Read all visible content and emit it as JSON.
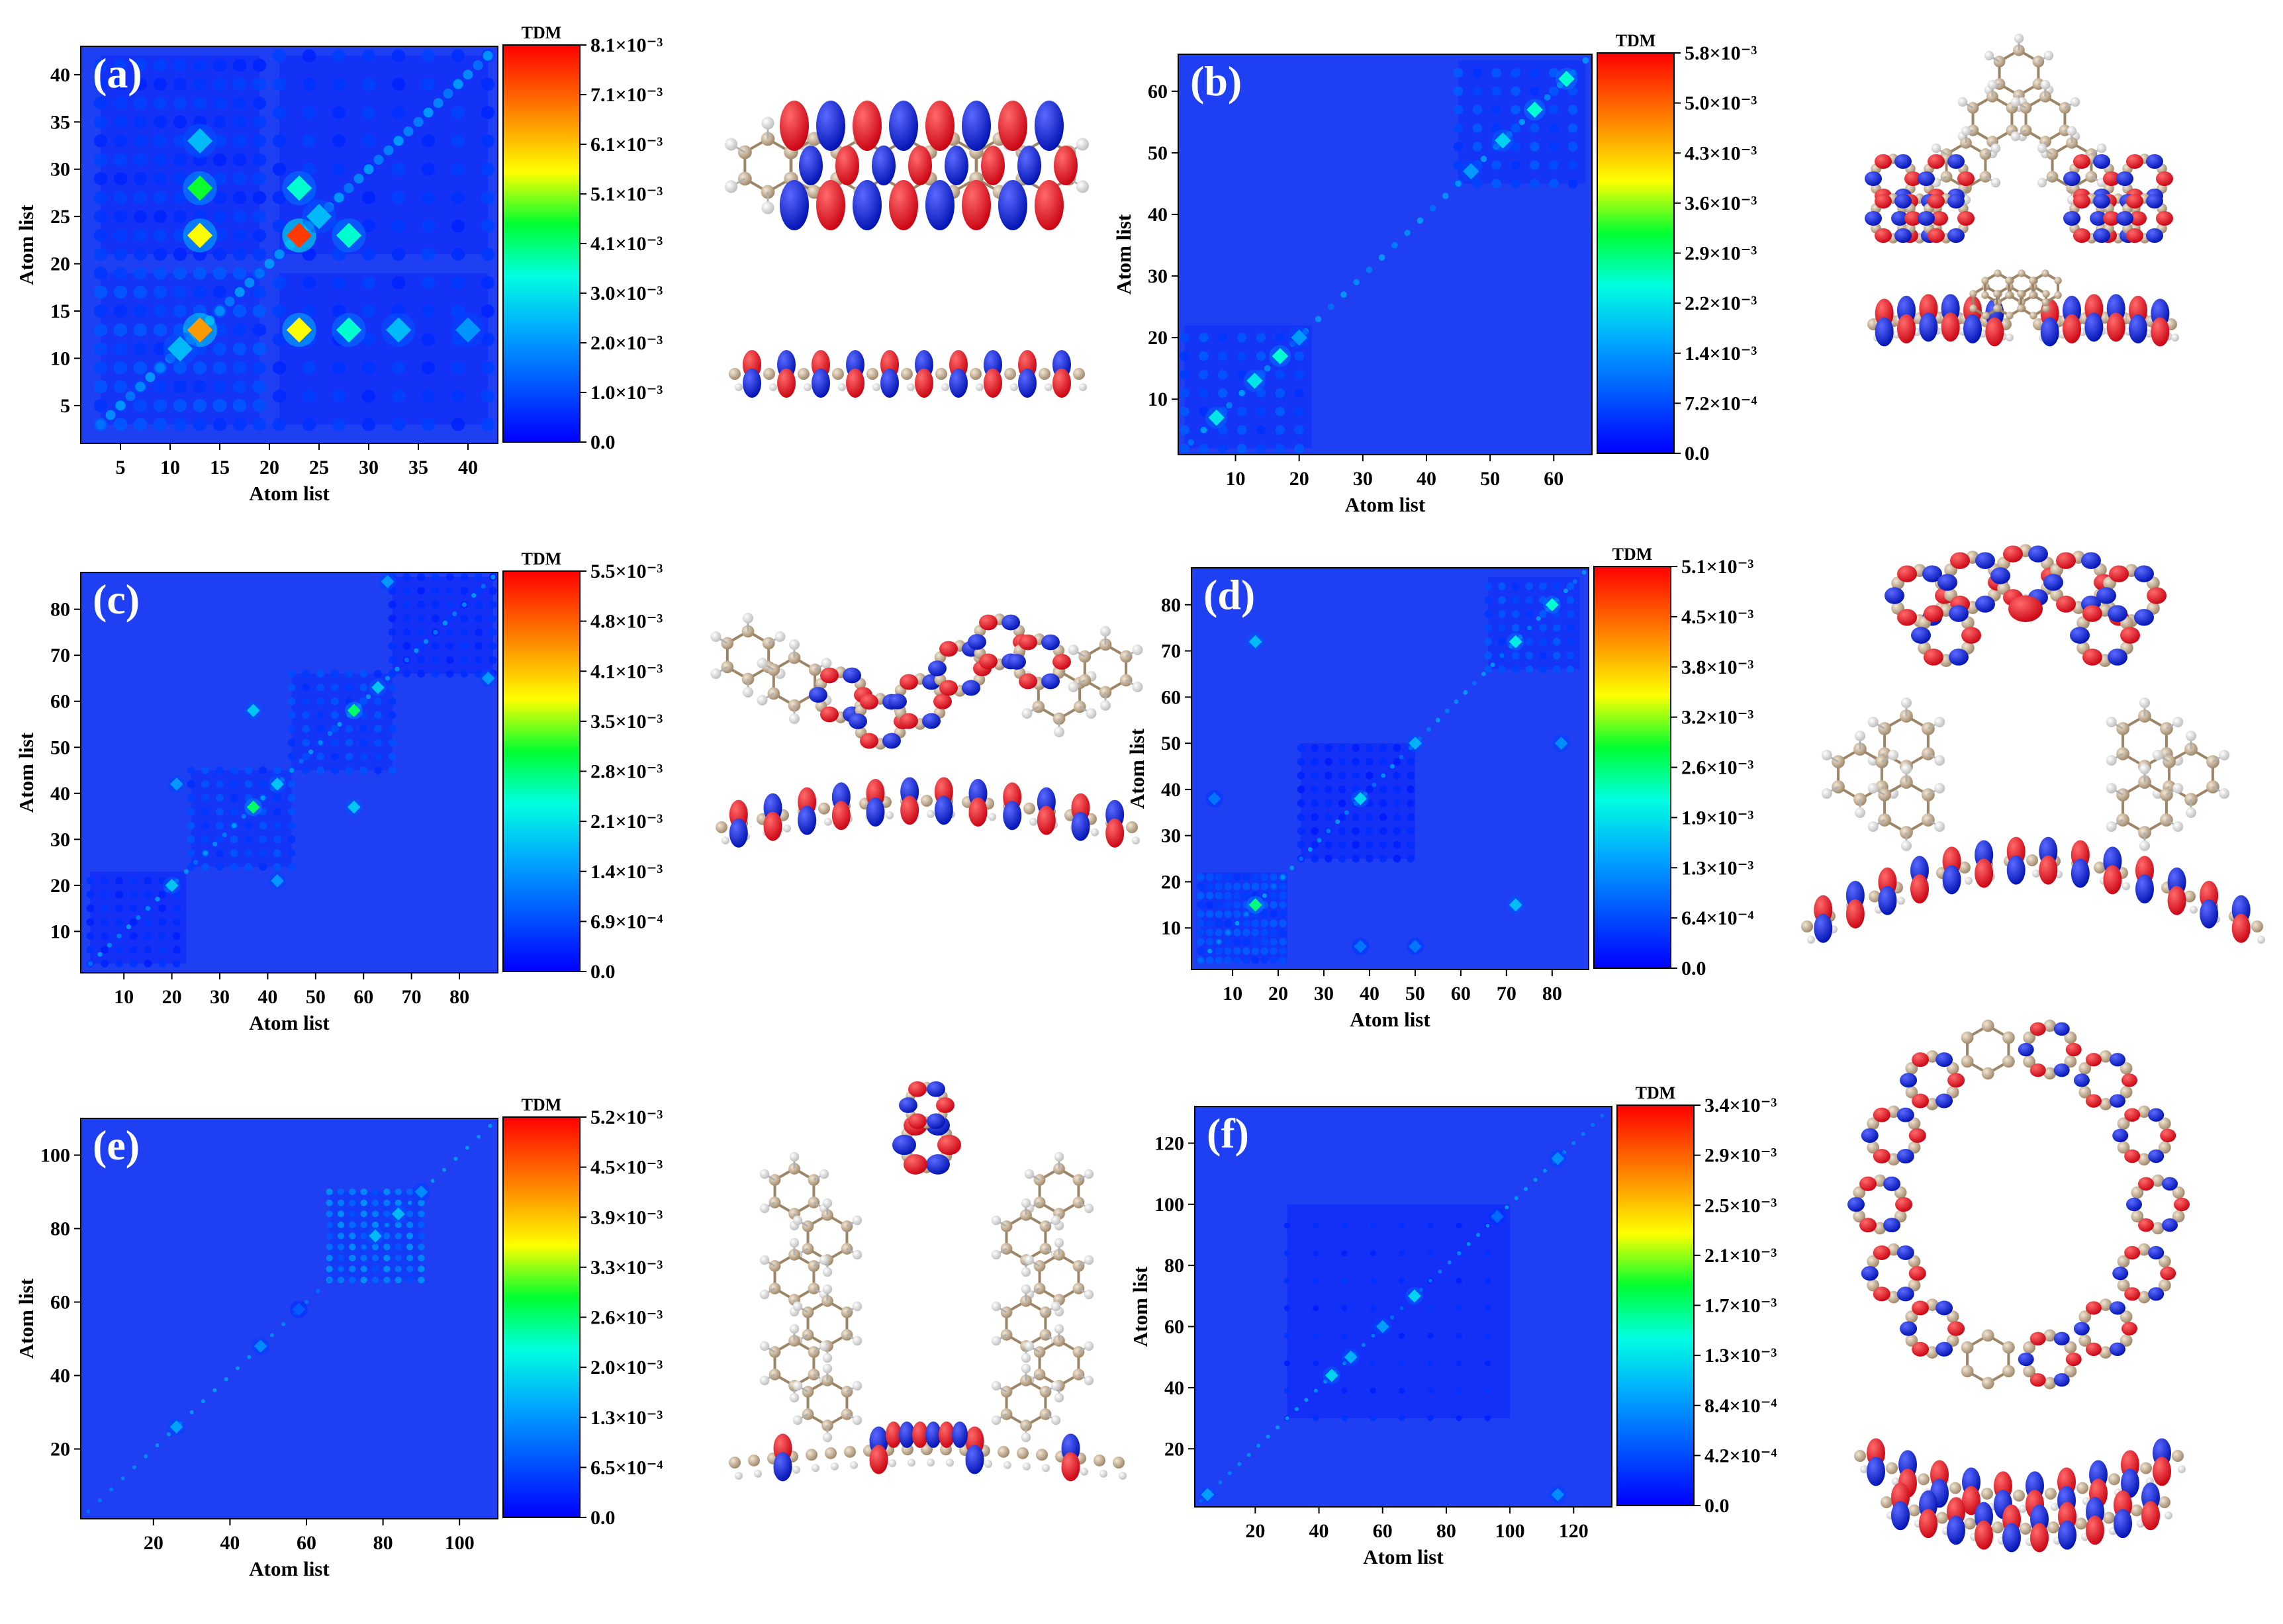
{
  "figure": {
    "colorbar_title": "TDM",
    "axis_label": "Atom list"
  },
  "colors": {
    "background": "#1f43f0",
    "scale": [
      "#0000ff",
      "#00e0ff",
      "#00ff40",
      "#ffff00",
      "#ff8c00",
      "#ff0000"
    ],
    "isosurface_positive": "#e0101a",
    "isosurface_negative": "#1020d0",
    "carbon": "#b8a488",
    "hydrogen": "#e8e8e8",
    "nitrogen": "#2030c0"
  },
  "chart_data": [
    {
      "type": "heatmap",
      "panel": "(a)",
      "title": "(a)",
      "xlabel": "Atom list",
      "ylabel": "Atom list",
      "xlim": [
        1,
        43
      ],
      "ylim": [
        1,
        43
      ],
      "xticks": [
        "5",
        "10",
        "15",
        "20",
        "25",
        "30",
        "35",
        "40"
      ],
      "yticks": [
        "5",
        "10",
        "15",
        "20",
        "25",
        "30",
        "35",
        "40"
      ],
      "colorbar": {
        "title": "TDM",
        "min": 0,
        "max": 0.0081,
        "ticks": [
          "8.1×10⁻³",
          "7.1×10⁻³",
          "6.1×10⁻³",
          "5.1×10⁻³",
          "4.1×10⁻³",
          "3.0×10⁻³",
          "2.0×10⁻³",
          "1.0×10⁻³",
          "0.0"
        ]
      },
      "hotspots": [
        [
          13,
          13,
          0.0065
        ],
        [
          23,
          23,
          0.0075
        ],
        [
          13,
          23,
          0.0055
        ],
        [
          23,
          13,
          0.0055
        ],
        [
          13,
          28,
          0.0045
        ],
        [
          28,
          13,
          0.0035
        ],
        [
          23,
          28,
          0.0035
        ],
        [
          28,
          23,
          0.0035
        ],
        [
          13,
          33,
          0.0025
        ],
        [
          33,
          13,
          0.0025
        ],
        [
          11,
          11,
          0.0025
        ],
        [
          25,
          25,
          0.0025
        ],
        [
          40,
          13,
          0.002
        ]
      ],
      "blocks": [
        [
          3,
          19,
          3,
          19,
          0.0012
        ],
        [
          21,
          42,
          21,
          42,
          0.0009
        ],
        [
          3,
          19,
          21,
          42,
          0.0009
        ],
        [
          21,
          42,
          3,
          19,
          0.0009
        ]
      ]
    },
    {
      "type": "heatmap",
      "panel": "(b)",
      "title": "(b)",
      "xlabel": "Atom list",
      "ylabel": "Atom list",
      "xlim": [
        1,
        66
      ],
      "ylim": [
        1,
        66
      ],
      "xticks": [
        "10",
        "20",
        "30",
        "40",
        "50",
        "60"
      ],
      "yticks": [
        "10",
        "20",
        "30",
        "40",
        "50",
        "60"
      ],
      "colorbar": {
        "title": "TDM",
        "min": 0,
        "max": 0.0058,
        "ticks": [
          "5.8×10⁻³",
          "5.0×10⁻³",
          "4.3×10⁻³",
          "3.6×10⁻³",
          "2.9×10⁻³",
          "2.2×10⁻³",
          "1.4×10⁻³",
          "7.2×10⁻⁴",
          "0.0"
        ]
      },
      "hotspots": [
        [
          7,
          7,
          0.0022
        ],
        [
          13,
          13,
          0.0022
        ],
        [
          17,
          17,
          0.0025
        ],
        [
          57,
          57,
          0.0025
        ],
        [
          52,
          52,
          0.002
        ],
        [
          62,
          62,
          0.0025
        ],
        [
          20,
          20,
          0.0015
        ],
        [
          47,
          47,
          0.0015
        ]
      ],
      "blocks": [
        [
          2,
          22,
          2,
          22,
          0.0009
        ],
        [
          45,
          65,
          45,
          65,
          0.0009
        ]
      ]
    },
    {
      "type": "heatmap",
      "panel": "(c)",
      "title": "(c)",
      "xlabel": "Atom list",
      "ylabel": "Atom list",
      "xlim": [
        1,
        88
      ],
      "ylim": [
        1,
        88
      ],
      "xticks": [
        "10",
        "20",
        "30",
        "40",
        "50",
        "60",
        "70",
        "80"
      ],
      "yticks": [
        "10",
        "20",
        "30",
        "40",
        "50",
        "60",
        "70",
        "80"
      ],
      "colorbar": {
        "title": "TDM",
        "min": 0,
        "max": 0.0055,
        "ticks": [
          "5.5×10⁻³",
          "4.8×10⁻³",
          "4.1×10⁻³",
          "3.5×10⁻³",
          "2.8×10⁻³",
          "2.1×10⁻³",
          "1.4×10⁻³",
          "6.9×10⁻⁴",
          "0.0"
        ]
      },
      "hotspots": [
        [
          37,
          37,
          0.0028
        ],
        [
          58,
          58,
          0.0028
        ],
        [
          20,
          20,
          0.0018
        ],
        [
          37,
          58,
          0.0018
        ],
        [
          58,
          37,
          0.0018
        ],
        [
          21,
          42,
          0.0014
        ],
        [
          42,
          21,
          0.0014
        ],
        [
          65,
          86,
          0.0014
        ],
        [
          86,
          65,
          0.0014
        ],
        [
          42,
          42,
          0.0018
        ],
        [
          63,
          63,
          0.0018
        ]
      ],
      "blocks": [
        [
          24,
          45,
          24,
          45,
          0.0008
        ],
        [
          45,
          66,
          45,
          66,
          0.0008
        ],
        [
          3,
          23,
          3,
          23,
          0.0005
        ],
        [
          66,
          87,
          66,
          87,
          0.0005
        ]
      ]
    },
    {
      "type": "heatmap",
      "panel": "(d)",
      "title": "(d)",
      "xlabel": "Atom list",
      "ylabel": "Atom list",
      "xlim": [
        1,
        88
      ],
      "ylim": [
        1,
        88
      ],
      "xticks": [
        "10",
        "20",
        "30",
        "40",
        "50",
        "60",
        "70",
        "80"
      ],
      "yticks": [
        "10",
        "20",
        "30",
        "40",
        "50",
        "60",
        "70",
        "80"
      ],
      "colorbar": {
        "title": "TDM",
        "min": 0,
        "max": 0.0051,
        "ticks": [
          "5.1×10⁻³",
          "4.5×10⁻³",
          "3.8×10⁻³",
          "3.2×10⁻³",
          "2.6×10⁻³",
          "1.9×10⁻³",
          "1.3×10⁻³",
          "6.4×10⁻⁴",
          "0.0"
        ]
      },
      "hotspots": [
        [
          15,
          15,
          0.0025
        ],
        [
          72,
          72,
          0.002
        ],
        [
          38,
          38,
          0.0018
        ],
        [
          50,
          50,
          0.0015
        ],
        [
          80,
          80,
          0.0022
        ],
        [
          15,
          72,
          0.0016
        ],
        [
          72,
          15,
          0.0016
        ],
        [
          50,
          6,
          0.001
        ],
        [
          6,
          38,
          0.001
        ],
        [
          38,
          6,
          0.001
        ],
        [
          82,
          50,
          0.0012
        ]
      ],
      "blocks": [
        [
          3,
          22,
          3,
          22,
          0.0008
        ],
        [
          66,
          86,
          66,
          86,
          0.0008
        ],
        [
          25,
          50,
          25,
          50,
          0.0004
        ]
      ]
    },
    {
      "type": "heatmap",
      "panel": "(e)",
      "title": "(e)",
      "xlabel": "Atom list",
      "ylabel": "Atom list",
      "xlim": [
        1,
        110
      ],
      "ylim": [
        1,
        110
      ],
      "xticks": [
        "20",
        "40",
        "60",
        "80",
        "100"
      ],
      "yticks": [
        "20",
        "40",
        "60",
        "80",
        "100"
      ],
      "colorbar": {
        "title": "TDM",
        "min": 0,
        "max": 0.0052,
        "ticks": [
          "5.2×10⁻³",
          "4.5×10⁻³",
          "3.9×10⁻³",
          "3.3×10⁻³",
          "2.6×10⁻³",
          "2.0×10⁻³",
          "1.3×10⁻³",
          "6.5×10⁻⁴",
          "0.0"
        ]
      },
      "hotspots": [
        [
          26,
          26,
          0.0014
        ],
        [
          48,
          48,
          0.0012
        ],
        [
          58,
          58,
          0.0008
        ],
        [
          90,
          90,
          0.0012
        ],
        [
          78,
          78,
          0.0016
        ],
        [
          84,
          84,
          0.0016
        ]
      ],
      "blocks": [
        [
          66,
          90,
          66,
          90,
          0.0013
        ]
      ]
    },
    {
      "type": "heatmap",
      "panel": "(f)",
      "title": "(f)",
      "xlabel": "Atom list",
      "ylabel": "Atom list",
      "xlim": [
        1,
        132
      ],
      "ylim": [
        1,
        132
      ],
      "xticks": [
        "20",
        "40",
        "60",
        "80",
        "100",
        "120"
      ],
      "yticks": [
        "20",
        "40",
        "60",
        "80",
        "100",
        "120"
      ],
      "colorbar": {
        "title": "TDM",
        "min": 0,
        "max": 0.0034,
        "ticks": [
          "3.4×10⁻³",
          "2.9×10⁻³",
          "2.5×10⁻³",
          "2.1×10⁻³",
          "1.7×10⁻³",
          "1.3×10⁻³",
          "8.4×10⁻⁴",
          "4.2×10⁻⁴",
          "0.0"
        ]
      },
      "hotspots": [
        [
          44,
          44,
          0.0012
        ],
        [
          70,
          70,
          0.0012
        ],
        [
          50,
          50,
          0.001
        ],
        [
          115,
          115,
          0.0008
        ],
        [
          115,
          5,
          0.0008
        ],
        [
          5,
          5,
          0.0009
        ],
        [
          60,
          60,
          0.0009
        ],
        [
          96,
          96,
          0.0006
        ]
      ],
      "blocks": [
        [
          30,
          100,
          30,
          100,
          0.0003
        ]
      ]
    }
  ],
  "molecules": [
    {
      "panel": "a",
      "kind": "linear"
    },
    {
      "panel": "b",
      "kind": "split"
    },
    {
      "panel": "c",
      "kind": "chain"
    },
    {
      "panel": "d",
      "kind": "arch"
    },
    {
      "panel": "e",
      "kind": "bridge"
    },
    {
      "panel": "f",
      "kind": "ring"
    }
  ]
}
